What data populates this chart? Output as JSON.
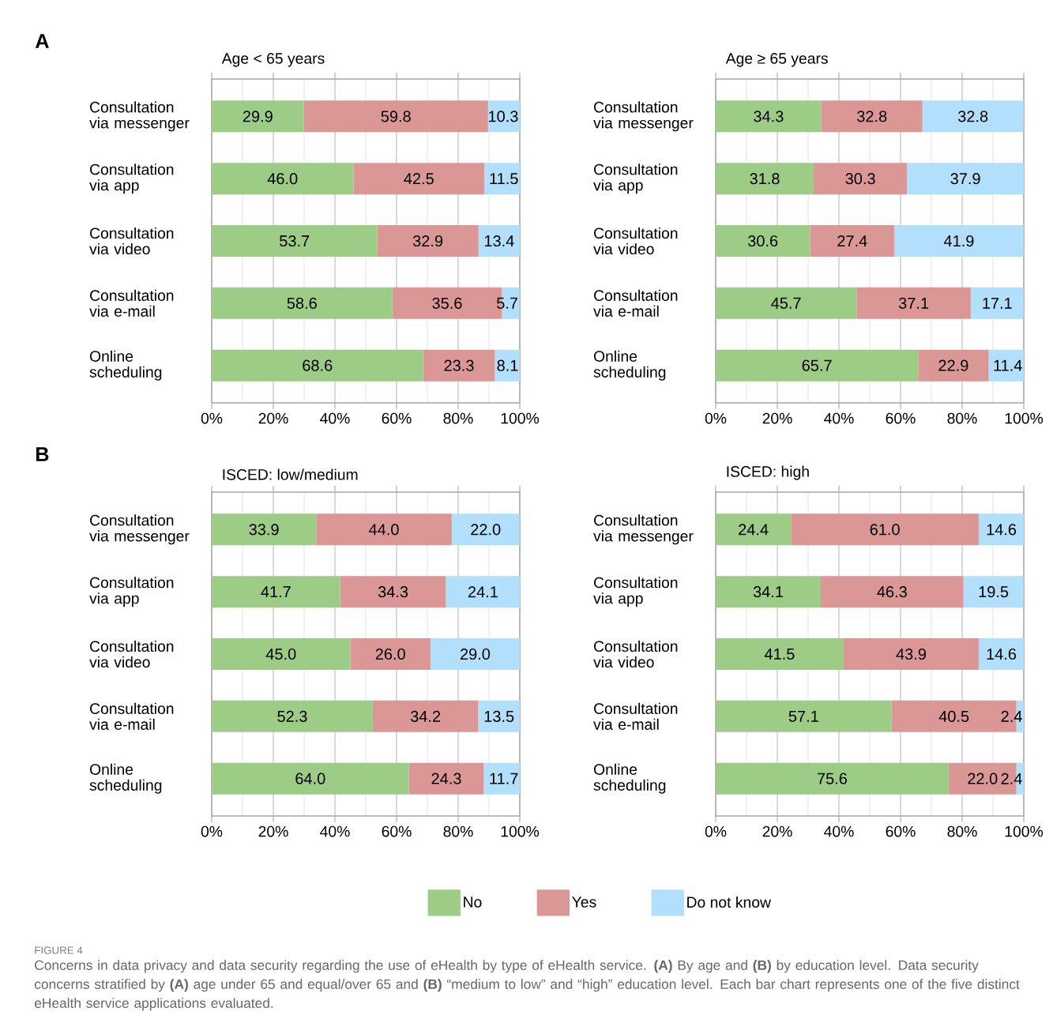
{
  "chart_data": [
    {
      "type": "bar",
      "orientation": "horizontal",
      "stacked": true,
      "title": "Age < 65 years",
      "categories": [
        "Consultation via messenger",
        "Consultation via app",
        "Consultation via video",
        "Consultation via e-mail",
        "Online scheduling"
      ],
      "series": [
        {
          "color": "#9dcc87",
          "values": [
            29.9,
            46.0,
            53.7,
            58.6,
            68.6
          ],
          "value_labels": [
            "29.9",
            "46.0",
            "53.7",
            "58.6",
            "68.6"
          ]
        },
        {
          "color": "#db9796",
          "values": [
            59.8,
            42.5,
            32.9,
            35.6,
            23.3
          ],
          "value_labels": [
            "59.8",
            "42.5",
            "32.9",
            "35.6",
            "23.3"
          ]
        },
        {
          "color": "#b2dffb",
          "values": [
            10.3,
            11.5,
            13.4,
            5.7,
            8.1
          ],
          "value_labels": [
            "10.3",
            "11.5",
            "13.4",
            "5.7",
            "8.1"
          ]
        }
      ],
      "xlim": [
        0,
        100
      ],
      "xticks": [
        {
          "value": 0,
          "label": "0%"
        },
        {
          "value": 20,
          "label": "20%"
        },
        {
          "value": 40,
          "label": "40%"
        },
        {
          "value": 60,
          "label": "60%"
        },
        {
          "value": 80,
          "label": "80%"
        },
        {
          "value": 100,
          "label": "100%"
        }
      ],
      "grid": "x",
      "annotations": [
        "A"
      ]
    },
    {
      "type": "bar",
      "orientation": "horizontal",
      "stacked": true,
      "title": "Age ≥ 65 years",
      "categories": [
        "Consultation via messenger",
        "Consultation via app",
        "Consultation via video",
        "Consultation via e-mail",
        "Online scheduling"
      ],
      "series": [
        {
          "color": "#9dcc87",
          "values": [
            34.3,
            31.8,
            30.6,
            45.7,
            65.7
          ],
          "value_labels": [
            "34.3",
            "31.8",
            "30.6",
            "45.7",
            "65.7"
          ]
        },
        {
          "color": "#db9796",
          "values": [
            32.8,
            30.3,
            27.4,
            37.1,
            22.9
          ],
          "value_labels": [
            "32.8",
            "30.3",
            "27.4",
            "37.1",
            "22.9"
          ]
        },
        {
          "color": "#b2dffb",
          "values": [
            32.8,
            37.9,
            41.9,
            17.1,
            11.4
          ],
          "value_labels": [
            "32.8",
            "37.9",
            "41.9",
            "17.1",
            "11.4"
          ]
        }
      ],
      "xlim": [
        0,
        100
      ],
      "xticks": [
        {
          "value": 0,
          "label": "0%"
        },
        {
          "value": 20,
          "label": "20%"
        },
        {
          "value": 40,
          "label": "40%"
        },
        {
          "value": 60,
          "label": "60%"
        },
        {
          "value": 80,
          "label": "80%"
        },
        {
          "value": 100,
          "label": "100%"
        }
      ],
      "grid": "x"
    },
    {
      "type": "bar",
      "orientation": "horizontal",
      "stacked": true,
      "title": "ISCED: low/medium",
      "categories": [
        "Consultation via messenger",
        "Consultation via app",
        "Consultation via video",
        "Consultation via e-mail",
        "Online scheduling"
      ],
      "series": [
        {
          "color": "#9dcc87",
          "values": [
            33.9,
            41.7,
            45.0,
            52.3,
            64.0
          ],
          "value_labels": [
            "33.9",
            "41.7",
            "45.0",
            "52.3",
            "64.0"
          ]
        },
        {
          "color": "#db9796",
          "values": [
            44.0,
            34.3,
            26.0,
            34.2,
            24.3
          ],
          "value_labels": [
            "44.0",
            "34.3",
            "26.0",
            "34.2",
            "24.3"
          ]
        },
        {
          "color": "#b2dffb",
          "values": [
            22.0,
            24.1,
            29.0,
            13.5,
            11.7
          ],
          "value_labels": [
            "22.0",
            "24.1",
            "29.0",
            "13.5",
            "11.7"
          ]
        }
      ],
      "xlim": [
        0,
        100
      ],
      "xticks": [
        {
          "value": 0,
          "label": "0%"
        },
        {
          "value": 20,
          "label": "20%"
        },
        {
          "value": 40,
          "label": "40%"
        },
        {
          "value": 60,
          "label": "60%"
        },
        {
          "value": 80,
          "label": "80%"
        },
        {
          "value": 100,
          "label": "100%"
        }
      ],
      "grid": "x",
      "annotations": [
        "B"
      ]
    },
    {
      "type": "bar",
      "orientation": "horizontal",
      "stacked": true,
      "title": "ISCED: high",
      "categories": [
        "Consultation via messenger",
        "Consultation via app",
        "Consultation via video",
        "Consultation via e-mail",
        "Online scheduling"
      ],
      "series": [
        {
          "name": "No",
          "color": "#9dcc87",
          "values": [
            24.4,
            34.1,
            41.5,
            57.1,
            75.6
          ],
          "value_labels": [
            "24.4",
            "34.1",
            "41.5",
            "57.1",
            "75.6"
          ]
        },
        {
          "name": "Yes",
          "color": "#db9796",
          "values": [
            61.0,
            46.3,
            43.9,
            40.5,
            22.0
          ],
          "value_labels": [
            "61.0",
            "46.3",
            "43.9",
            "40.5",
            "22.0"
          ]
        },
        {
          "name": "Do not know",
          "color": "#b2dffb",
          "values": [
            14.6,
            19.5,
            14.6,
            2.4,
            2.4
          ],
          "value_labels": [
            "14.6",
            "19.5",
            "14.6",
            "2.4",
            "2.4"
          ]
        }
      ],
      "xlim": [
        0,
        100
      ],
      "xticks": [
        {
          "value": 0,
          "label": "0%"
        },
        {
          "value": 20,
          "label": "20%"
        },
        {
          "value": 40,
          "label": "40%"
        },
        {
          "value": 60,
          "label": "60%"
        },
        {
          "value": 80,
          "label": "80%"
        },
        {
          "value": 100,
          "label": "100%"
        }
      ],
      "grid": "x",
      "legend": "bottom",
      "annotations": [
        "FIGURE 4",
        "Concerns in data privacy and data security regarding the use of eHealth by type of eHealth service. **(A)** By age and **(B)** by education level. Data security concerns stratified by **(A)** age under 65 and equal/over 65 and **(B)** “medium to low” and “high” education level. Each bar chart represents one of the five distinct eHealth service applications evaluated."
      ]
    }
  ]
}
